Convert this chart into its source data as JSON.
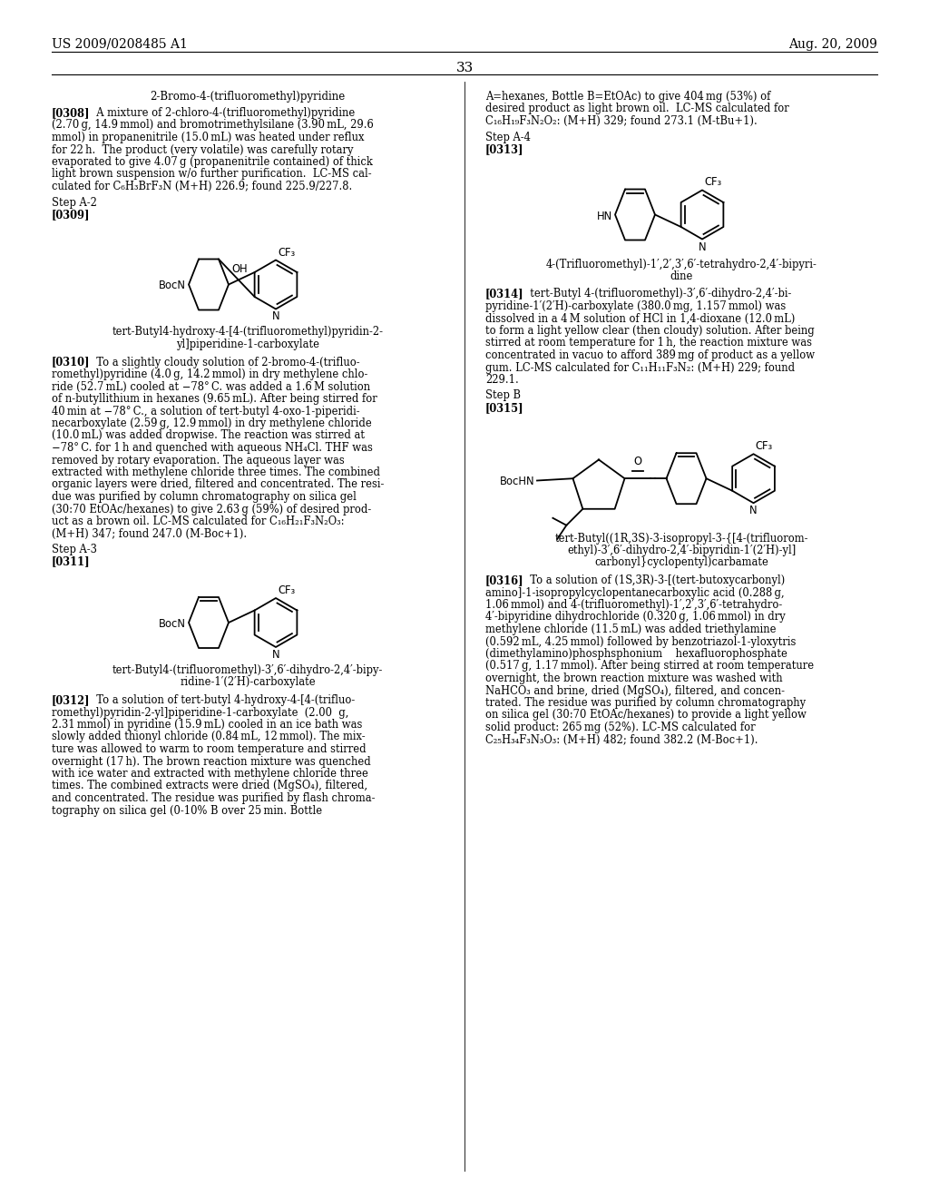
{
  "bg": "#ffffff",
  "header_left": "US 2009/0208485 A1",
  "header_right": "Aug. 20, 2009",
  "page_number": "33"
}
